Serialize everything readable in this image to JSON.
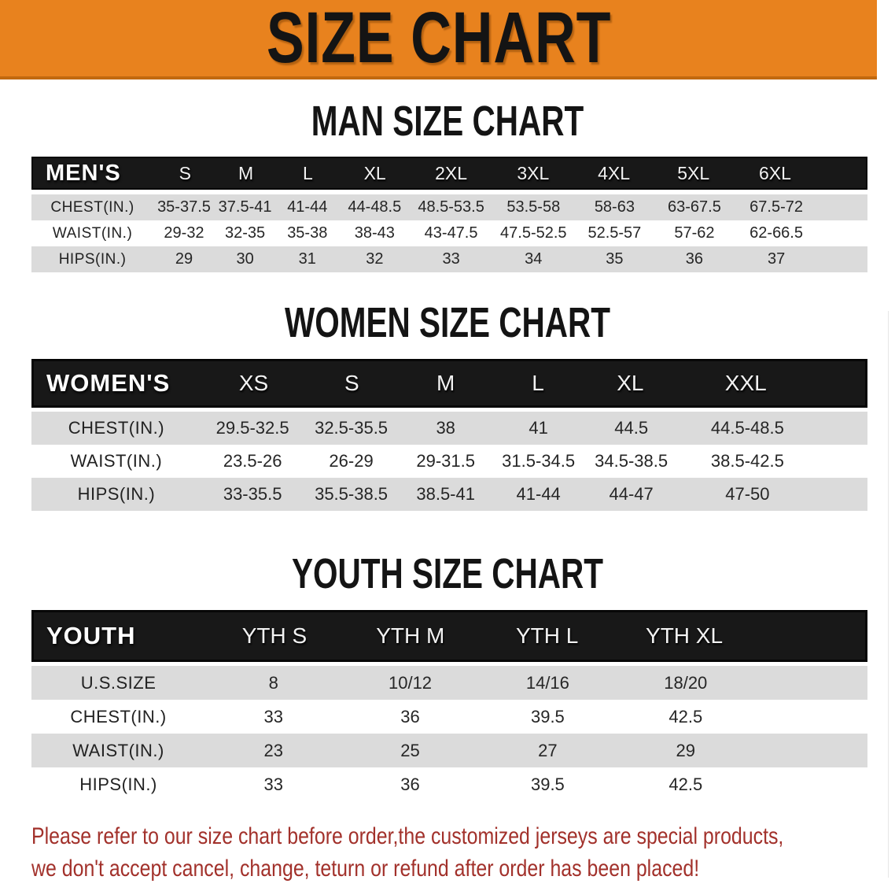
{
  "banner": {
    "title": "SIZE CHART"
  },
  "colors": {
    "banner_bg": "#E8821E",
    "banner_edge": "#C2690F",
    "table_header_bg": "#181818",
    "row_stripe": "#DBDBDB",
    "disclaimer_text": "#A2312B"
  },
  "sections": [
    {
      "heading": "MAN SIZE CHART",
      "corner_label": "MEN'S",
      "columns": [
        "S",
        "M",
        "L",
        "XL",
        "2XL",
        "3XL",
        "4XL",
        "5XL",
        "6XL"
      ],
      "rows": [
        {
          "label": "CHEST(IN.)",
          "values": [
            "35-37.5",
            "37.5-41",
            "41-44",
            "44-48.5",
            "48.5-53.5",
            "53.5-58",
            "58-63",
            "63-67.5",
            "67.5-72"
          ]
        },
        {
          "label": "WAIST(IN.)",
          "values": [
            "29-32",
            "32-35",
            "35-38",
            "38-43",
            "43-47.5",
            "47.5-52.5",
            "52.5-57",
            "57-62",
            "62-66.5"
          ]
        },
        {
          "label": "HIPS(IN.)",
          "values": [
            "29",
            "30",
            "31",
            "32",
            "33",
            "34",
            "35",
            "36",
            "37"
          ]
        }
      ]
    },
    {
      "heading": "WOMEN SIZE CHART",
      "corner_label": "WOMEN'S",
      "columns": [
        "XS",
        "S",
        "M",
        "L",
        "XL",
        "XXL"
      ],
      "rows": [
        {
          "label": "CHEST(IN.)",
          "values": [
            "29.5-32.5",
            "32.5-35.5",
            "38",
            "41",
            "44.5",
            "44.5-48.5"
          ]
        },
        {
          "label": "WAIST(IN.)",
          "values": [
            "23.5-26",
            "26-29",
            "29-31.5",
            "31.5-34.5",
            "34.5-38.5",
            "38.5-42.5"
          ]
        },
        {
          "label": "HIPS(IN.)",
          "values": [
            "33-35.5",
            "35.5-38.5",
            "38.5-41",
            "41-44",
            "44-47",
            "47-50"
          ]
        }
      ]
    },
    {
      "heading": "YOUTH SIZE CHART",
      "corner_label": "YOUTH",
      "columns": [
        "YTH S",
        "YTH M",
        "YTH L",
        "YTH XL"
      ],
      "rows": [
        {
          "label": "U.S.SIZE",
          "values": [
            "8",
            "10/12",
            "14/16",
            "18/20"
          ]
        },
        {
          "label": "CHEST(IN.)",
          "values": [
            "33",
            "36",
            "39.5",
            "42.5"
          ]
        },
        {
          "label": "WAIST(IN.)",
          "values": [
            "23",
            "25",
            "27",
            "29"
          ]
        },
        {
          "label": "HIPS(IN.)",
          "values": [
            "33",
            "36",
            "39.5",
            "42.5"
          ]
        }
      ]
    }
  ],
  "disclaimer": {
    "line1": "Please refer to our size chart before order,the customized jerseys are special products,",
    "line2": "we don't accept cancel, change, teturn or refund after order has been placed!"
  }
}
